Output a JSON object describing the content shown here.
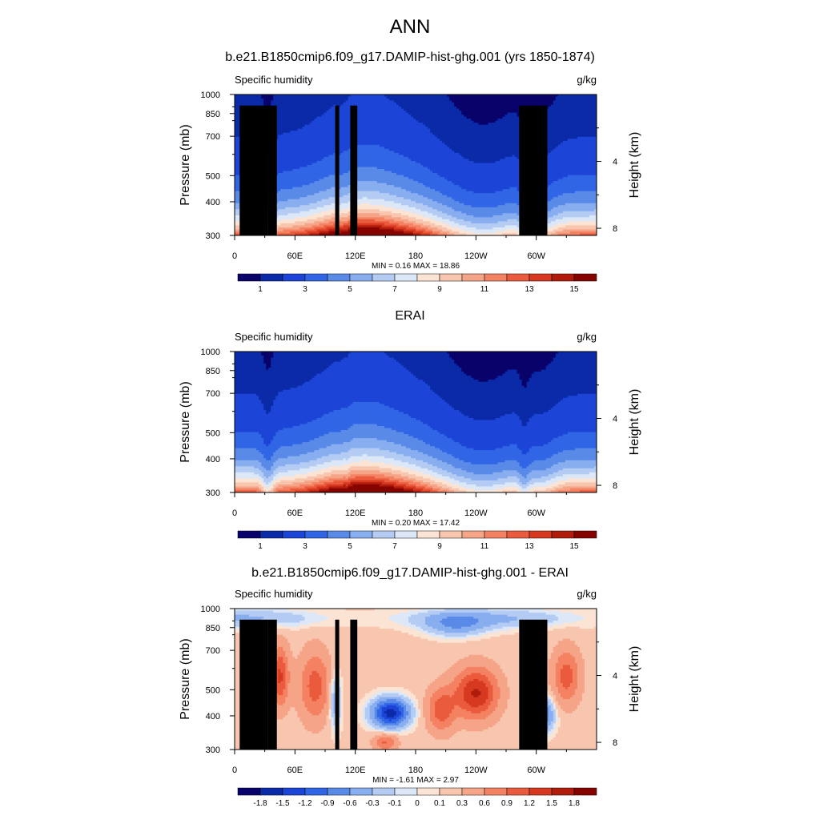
{
  "main_title": "ANN",
  "colors": {
    "abs_scale": [
      "#08026a",
      "#0a2aa8",
      "#1c44d6",
      "#3066e6",
      "#5a8ae8",
      "#88aef0",
      "#b4ccf4",
      "#dce8f8",
      "#fbe4d4",
      "#f8c6ae",
      "#f6a488",
      "#f48262",
      "#ea5a3c",
      "#d63820",
      "#b01c0c",
      "#860400"
    ],
    "diff_scale": [
      "#08026a",
      "#0a2aa8",
      "#1c44d6",
      "#3066e6",
      "#5a8ae8",
      "#88aef0",
      "#b4ccf4",
      "#dce8f8",
      "#fbe4d4",
      "#f8c6ae",
      "#f6a488",
      "#f48262",
      "#ea5a3c",
      "#d63820",
      "#b01c0c",
      "#860400"
    ],
    "topography": "#000000"
  },
  "chart_data": [
    {
      "type": "heatmap",
      "title": "b.e21.B1850cmip6.f09_g17.DAMIP-hist-ghg.001 (yrs 1850-1874)",
      "left_string": "Specific humidity",
      "right_string": "g/kg",
      "ylabel": "Pressure (mb)",
      "ylabel_right": "Height (km)",
      "y_ticks": [
        "300",
        "400",
        "500",
        "700",
        "850",
        "1000"
      ],
      "y_tick_values": [
        300,
        400,
        500,
        700,
        850,
        1000
      ],
      "ylim": [
        1000,
        300
      ],
      "y_scale": "log",
      "right_ticks": [
        "8",
        "4"
      ],
      "right_tick_values": [
        8,
        4
      ],
      "x_ticks": [
        "0",
        "60E",
        "120E",
        "180",
        "120W",
        "60W"
      ],
      "x_tick_values": [
        0,
        60,
        120,
        180,
        240,
        300
      ],
      "xlim": [
        0,
        360
      ],
      "stats": "MIN =   0.16  MAX =  18.86",
      "min": 0.16,
      "max": 18.86,
      "field": "abs",
      "colorbar_labels": [
        "1",
        "3",
        "5",
        "7",
        "9",
        "11",
        "13",
        "15"
      ],
      "colorbar_levels": [
        0.5,
        1,
        2,
        3,
        4,
        5,
        6,
        7,
        8,
        9,
        10,
        11,
        12,
        13,
        14,
        15
      ],
      "topography": true
    },
    {
      "type": "heatmap",
      "title": "ERAI",
      "left_string": "Specific humidity",
      "right_string": "g/kg",
      "ylabel": "Pressure (mb)",
      "ylabel_right": "Height (km)",
      "y_ticks": [
        "300",
        "400",
        "500",
        "700",
        "850",
        "1000"
      ],
      "y_tick_values": [
        300,
        400,
        500,
        700,
        850,
        1000
      ],
      "ylim": [
        1000,
        300
      ],
      "y_scale": "log",
      "right_ticks": [
        "8",
        "4"
      ],
      "right_tick_values": [
        8,
        4
      ],
      "x_ticks": [
        "0",
        "60E",
        "120E",
        "180",
        "120W",
        "60W"
      ],
      "x_tick_values": [
        0,
        60,
        120,
        180,
        240,
        300
      ],
      "xlim": [
        0,
        360
      ],
      "stats": "MIN =   0.20  MAX =  17.42",
      "min": 0.2,
      "max": 17.42,
      "field": "abs_erai",
      "colorbar_labels": [
        "1",
        "3",
        "5",
        "7",
        "9",
        "11",
        "13",
        "15"
      ],
      "colorbar_levels": [
        0.5,
        1,
        2,
        3,
        4,
        5,
        6,
        7,
        8,
        9,
        10,
        11,
        12,
        13,
        14,
        15
      ],
      "topography": false
    },
    {
      "type": "heatmap",
      "title": "b.e21.B1850cmip6.f09_g17.DAMIP-hist-ghg.001 - ERAI",
      "left_string": "Specific humidity",
      "right_string": "g/kg",
      "ylabel": "Pressure (mb)",
      "ylabel_right": "Height (km)",
      "y_ticks": [
        "300",
        "400",
        "500",
        "700",
        "850",
        "1000"
      ],
      "y_tick_values": [
        300,
        400,
        500,
        700,
        850,
        1000
      ],
      "ylim": [
        1000,
        300
      ],
      "y_scale": "log",
      "right_ticks": [
        "8",
        "4"
      ],
      "right_tick_values": [
        8,
        4
      ],
      "x_ticks": [
        "0",
        "60E",
        "120E",
        "180",
        "120W",
        "60W"
      ],
      "x_tick_values": [
        0,
        60,
        120,
        180,
        240,
        300
      ],
      "xlim": [
        0,
        360
      ],
      "stats": "MIN =  -1.61  MAX =   2.97",
      "min": -1.61,
      "max": 2.97,
      "field": "diff",
      "colorbar_labels": [
        "-1.8",
        "-1.5",
        "-1.2",
        "-0.9",
        "-0.6",
        "-0.3",
        "-0.1",
        "0",
        "0.1",
        "0.3",
        "0.6",
        "0.9",
        "1.2",
        "1.5",
        "1.8"
      ],
      "colorbar_levels": [
        -1.8,
        -1.5,
        -1.2,
        -0.9,
        -0.6,
        -0.3,
        -0.1,
        0,
        0.1,
        0.3,
        0.6,
        0.9,
        1.2,
        1.5,
        1.8
      ],
      "topography": true
    }
  ]
}
